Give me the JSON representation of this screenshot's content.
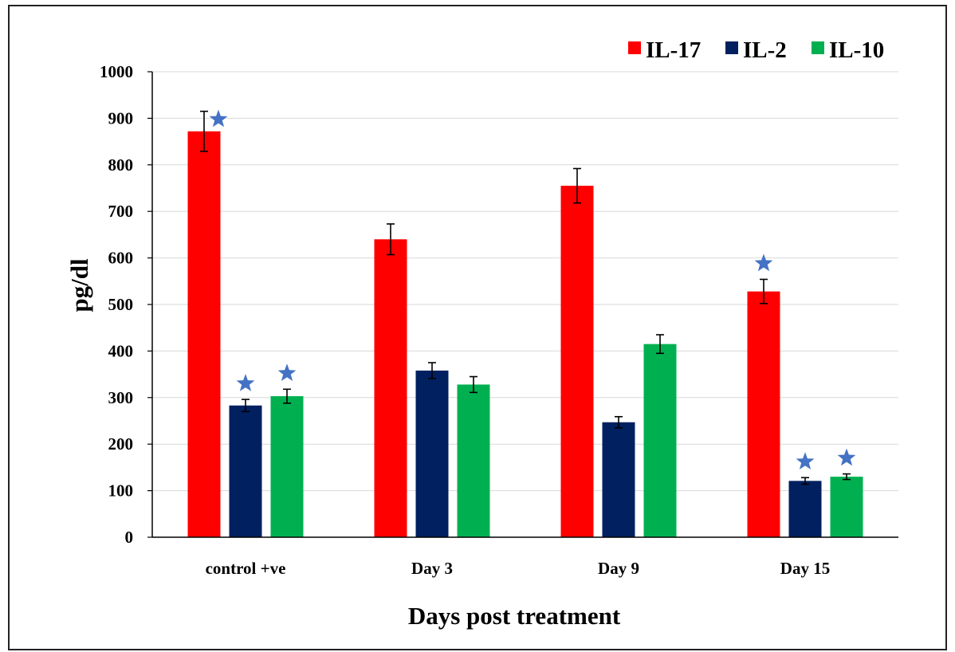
{
  "chart_data": {
    "type": "bar",
    "title": "",
    "xlabel": "Days post treatment",
    "ylabel": "pg/dl",
    "ylim": [
      0,
      1000
    ],
    "yticks": [
      0,
      100,
      200,
      300,
      400,
      500,
      600,
      700,
      800,
      900,
      1000
    ],
    "grid": true,
    "legend_position": "top-right",
    "categories": [
      "control +ve",
      "Day  3",
      "Day  9",
      "Day  15"
    ],
    "series": [
      {
        "name": "IL-17",
        "color": "#ff0000",
        "values": [
          872,
          640,
          755,
          528
        ],
        "errors": [
          43,
          33,
          37,
          26
        ],
        "significant": [
          true,
          false,
          false,
          true
        ]
      },
      {
        "name": "IL-2",
        "color": "#002060",
        "values": [
          283,
          358,
          247,
          121
        ],
        "errors": [
          13,
          17,
          12,
          7
        ],
        "significant": [
          true,
          false,
          false,
          true
        ]
      },
      {
        "name": "IL-10",
        "color": "#00b050",
        "values": [
          303,
          328,
          415,
          130
        ],
        "errors": [
          15,
          17,
          20,
          6
        ],
        "significant": [
          true,
          false,
          false,
          true
        ]
      }
    ],
    "significance_marker": {
      "icon": "star-icon",
      "color": "#4472c4"
    }
  }
}
